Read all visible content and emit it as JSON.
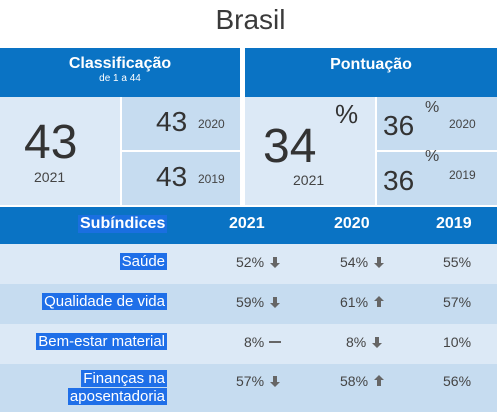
{
  "country": "Brasil",
  "ranking": {
    "title": "Classificação",
    "subtitle": "de 1 a 44",
    "current": {
      "value": "43",
      "year": "2021"
    },
    "previous": [
      {
        "value": "43",
        "year": "2020"
      },
      {
        "value": "43",
        "year": "2019"
      }
    ]
  },
  "score": {
    "title": "Pontuação",
    "unit": "%",
    "current": {
      "value": "34",
      "year": "2021"
    },
    "previous": [
      {
        "value": "36",
        "year": "2020"
      },
      {
        "value": "36",
        "year": "2019"
      }
    ]
  },
  "table": {
    "header": {
      "label": "Subíndices",
      "y2021": "2021",
      "y2020": "2020",
      "y2019": "2019"
    },
    "rows": [
      {
        "label": "Saúde",
        "v2021": "52%",
        "t2021": "down",
        "v2020": "54%",
        "t2020": "down",
        "v2019": "55%"
      },
      {
        "label": "Qualidade de vida",
        "v2021": "59%",
        "t2021": "down",
        "v2020": "61%",
        "t2020": "up",
        "v2019": "57%"
      },
      {
        "label": "Bem-estar material",
        "v2021": "8%",
        "t2021": "flat",
        "v2020": "8%",
        "t2020": "down",
        "v2019": "10%"
      },
      {
        "label_line1": "Finanças na",
        "label_line2": "aposentadoria",
        "v2021": "57%",
        "t2021": "down",
        "v2020": "58%",
        "t2020": "up",
        "v2019": "56%"
      }
    ]
  },
  "colors": {
    "header_blue": "#0a73c4",
    "cell_light": "#dce9f6",
    "cell_mid": "#c6dcf0",
    "arrow_grey": "#666666"
  }
}
